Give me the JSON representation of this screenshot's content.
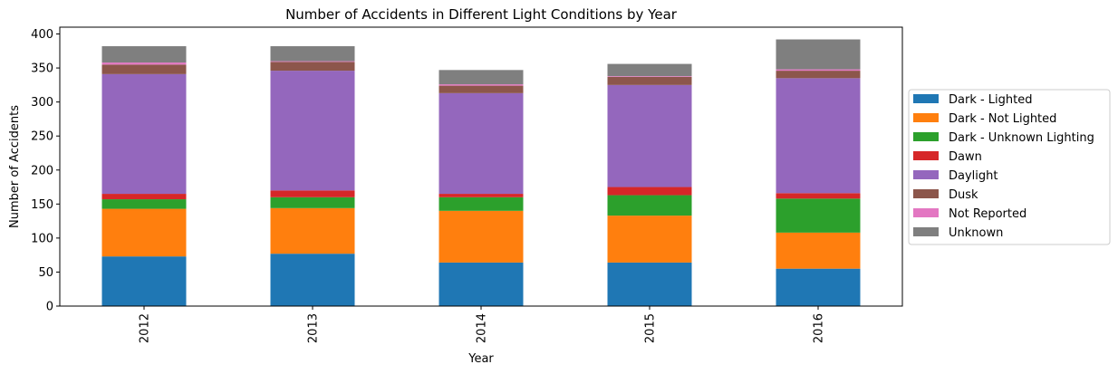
{
  "chart_data": {
    "type": "bar",
    "stacked": true,
    "title": "Number of Accidents in Different Light Conditions by Year",
    "xlabel": "Year",
    "ylabel": "Number of Accidents",
    "categories": [
      "2012",
      "2013",
      "2014",
      "2015",
      "2016"
    ],
    "ylim": [
      0,
      410
    ],
    "yticks": [
      0,
      50,
      100,
      150,
      200,
      250,
      300,
      350,
      400
    ],
    "grid": false,
    "legend_position": "center-right outside",
    "series": [
      {
        "name": "Dark - Lighted",
        "color": "#1f77b4",
        "values": [
          73,
          77,
          64,
          64,
          55
        ]
      },
      {
        "name": "Dark - Not Lighted",
        "color": "#ff7f0e",
        "values": [
          70,
          67,
          76,
          69,
          53
        ]
      },
      {
        "name": "Dark - Unknown Lighting",
        "color": "#2ca02c",
        "values": [
          14,
          16,
          20,
          30,
          50
        ]
      },
      {
        "name": "Dawn",
        "color": "#d62728",
        "values": [
          8,
          10,
          5,
          12,
          8
        ]
      },
      {
        "name": "Daylight",
        "color": "#9467bd",
        "values": [
          176,
          176,
          148,
          150,
          169
        ]
      },
      {
        "name": "Dusk",
        "color": "#8c564b",
        "values": [
          14,
          13,
          11,
          12,
          11
        ]
      },
      {
        "name": "Not Reported",
        "color": "#e377c2",
        "values": [
          3,
          1,
          2,
          1,
          2
        ]
      },
      {
        "name": "Unknown",
        "color": "#7f7f7f",
        "values": [
          24,
          22,
          21,
          18,
          44
        ]
      }
    ]
  }
}
